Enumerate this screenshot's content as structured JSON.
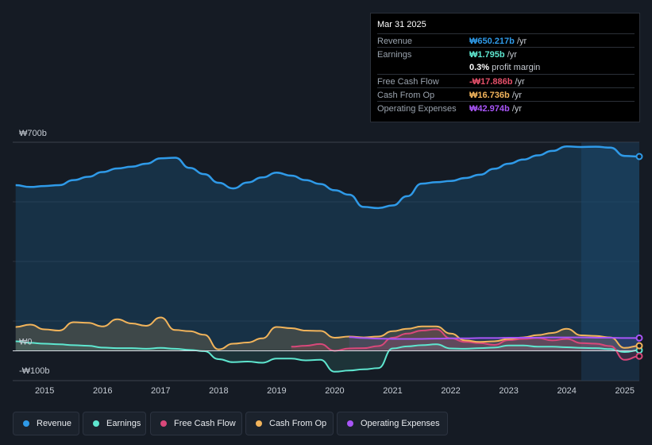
{
  "tooltip": {
    "date": "Mar 31 2025",
    "rows": [
      {
        "label": "Revenue",
        "value": "₩650.217b",
        "unit": "/yr",
        "color": "#2f9ae8"
      },
      {
        "label": "Earnings",
        "value": "₩1.795b",
        "unit": "/yr",
        "color": "#5ee6cf"
      },
      {
        "label": "",
        "value": "0.3%",
        "unit": "profit margin",
        "color": "#ffffff"
      },
      {
        "label": "Free Cash Flow",
        "value": "-₩17.886b",
        "unit": "/yr",
        "color": "#e5506a"
      },
      {
        "label": "Cash From Op",
        "value": "₩16.736b",
        "unit": "/yr",
        "color": "#f2b45b"
      },
      {
        "label": "Operating Expenses",
        "value": "₩42.974b",
        "unit": "/yr",
        "color": "#a855f7"
      }
    ]
  },
  "legend": [
    {
      "label": "Revenue",
      "color": "#2f9ae8"
    },
    {
      "label": "Earnings",
      "color": "#5ee6cf"
    },
    {
      "label": "Free Cash Flow",
      "color": "#d9487a"
    },
    {
      "label": "Cash From Op",
      "color": "#f2b45b"
    },
    {
      "label": "Operating Expenses",
      "color": "#a855f7"
    }
  ],
  "chart_data": {
    "type": "area",
    "title": "",
    "xlabel": "",
    "ylabel": "",
    "y_tick_labels": [
      "₩700b",
      "₩0",
      "-₩100b"
    ],
    "x_tick_labels": [
      "2015",
      "2016",
      "2017",
      "2018",
      "2019",
      "2020",
      "2021",
      "2022",
      "2023",
      "2024",
      "2025"
    ],
    "x_ticks": [
      2015,
      2016,
      2017,
      2018,
      2019,
      2020,
      2021,
      2022,
      2023,
      2024,
      2025
    ],
    "xlim": [
      2014.45,
      2025.25
    ],
    "ylim": [
      -100,
      700
    ],
    "forecast_start": 2024.25,
    "series": [
      {
        "name": "Revenue",
        "color": "#2f9ae8",
        "x": [
          2014.5,
          2014.75,
          2015.0,
          2015.25,
          2015.5,
          2015.75,
          2016.0,
          2016.25,
          2016.5,
          2016.75,
          2017.0,
          2017.25,
          2017.5,
          2017.75,
          2018.0,
          2018.25,
          2018.5,
          2018.75,
          2019.0,
          2019.25,
          2019.5,
          2019.75,
          2020.0,
          2020.25,
          2020.5,
          2020.75,
          2021.0,
          2021.25,
          2021.5,
          2021.75,
          2022.0,
          2022.25,
          2022.5,
          2022.75,
          2023.0,
          2023.25,
          2023.5,
          2023.75,
          2024.0,
          2024.25,
          2024.5,
          2024.75,
          2025.0,
          2025.25
        ],
        "values": [
          556,
          550,
          553,
          556,
          573,
          584,
          600,
          612,
          618,
          628,
          646,
          648,
          614,
          593,
          564,
          545,
          565,
          582,
          598,
          588,
          573,
          560,
          539,
          524,
          483,
          479,
          488,
          519,
          561,
          566,
          570,
          580,
          591,
          611,
          628,
          642,
          656,
          671,
          686,
          684,
          685,
          682,
          654,
          652
        ]
      },
      {
        "name": "Earnings",
        "color": "#5ee6cf",
        "x": [
          2014.5,
          2014.75,
          2015.0,
          2015.25,
          2015.5,
          2015.75,
          2016.0,
          2016.25,
          2016.5,
          2016.75,
          2017.0,
          2017.25,
          2017.5,
          2017.75,
          2018.0,
          2018.25,
          2018.5,
          2018.75,
          2019.0,
          2019.25,
          2019.5,
          2019.75,
          2020.0,
          2020.25,
          2020.5,
          2020.75,
          2021.0,
          2021.25,
          2021.5,
          2021.75,
          2022.0,
          2022.25,
          2022.5,
          2022.75,
          2023.0,
          2023.25,
          2023.5,
          2023.75,
          2024.0,
          2024.25,
          2024.5,
          2024.75,
          2025.0,
          2025.25
        ],
        "values": [
          32,
          27,
          24,
          22,
          19,
          17,
          11,
          9,
          9,
          7,
          10,
          7,
          3,
          -1,
          -28,
          -38,
          -36,
          -40,
          -26,
          -26,
          -32,
          -30,
          -70,
          -66,
          -62,
          -58,
          8,
          15,
          19,
          22,
          8,
          7,
          9,
          11,
          18,
          18,
          14,
          14,
          12,
          10,
          9,
          6,
          -4,
          2
        ]
      },
      {
        "name": "Free Cash Flow",
        "color": "#d9487a",
        "x": [
          2019.25,
          2019.5,
          2019.75,
          2020.0,
          2020.25,
          2020.5,
          2020.75,
          2021.0,
          2021.25,
          2021.5,
          2021.75,
          2022.0,
          2022.25,
          2022.5,
          2022.75,
          2023.0,
          2023.25,
          2023.5,
          2023.75,
          2024.0,
          2024.25,
          2024.5,
          2024.75,
          2025.0,
          2025.25
        ],
        "values": [
          14,
          17,
          23,
          0,
          8,
          9,
          16,
          44,
          58,
          68,
          72,
          42,
          30,
          26,
          20,
          36,
          40,
          43,
          35,
          40,
          26,
          24,
          16,
          -30,
          -18
        ]
      },
      {
        "name": "Cash From Op",
        "color": "#f2b45b",
        "x": [
          2014.5,
          2014.75,
          2015.0,
          2015.25,
          2015.5,
          2015.75,
          2016.0,
          2016.25,
          2016.5,
          2016.75,
          2017.0,
          2017.25,
          2017.5,
          2017.75,
          2018.0,
          2018.25,
          2018.5,
          2018.75,
          2019.0,
          2019.25,
          2019.5,
          2019.75,
          2020.0,
          2020.25,
          2020.5,
          2020.75,
          2021.0,
          2021.25,
          2021.5,
          2021.75,
          2022.0,
          2022.25,
          2022.5,
          2022.75,
          2023.0,
          2023.25,
          2023.5,
          2023.75,
          2024.0,
          2024.25,
          2024.5,
          2024.75,
          2025.0,
          2025.25
        ],
        "values": [
          80,
          88,
          72,
          68,
          96,
          94,
          82,
          106,
          92,
          84,
          112,
          70,
          66,
          54,
          5,
          24,
          28,
          42,
          80,
          76,
          68,
          67,
          44,
          48,
          45,
          48,
          66,
          74,
          82,
          82,
          58,
          35,
          30,
          32,
          40,
          45,
          53,
          60,
          74,
          52,
          50,
          45,
          10,
          17
        ]
      },
      {
        "name": "Operating Expenses",
        "color": "#a855f7",
        "x": [
          2020.25,
          2020.5,
          2020.75,
          2021.0,
          2021.25,
          2021.5,
          2021.75,
          2022.0,
          2022.25,
          2022.5,
          2022.75,
          2023.0,
          2023.25,
          2023.5,
          2023.75,
          2024.0,
          2024.25,
          2024.5,
          2024.75,
          2025.0,
          2025.25
        ],
        "values": [
          46,
          43,
          41,
          40,
          40,
          40,
          41,
          42,
          42,
          43,
          43,
          44,
          44,
          44,
          45,
          45,
          45,
          44,
          44,
          43,
          43
        ]
      }
    ]
  }
}
